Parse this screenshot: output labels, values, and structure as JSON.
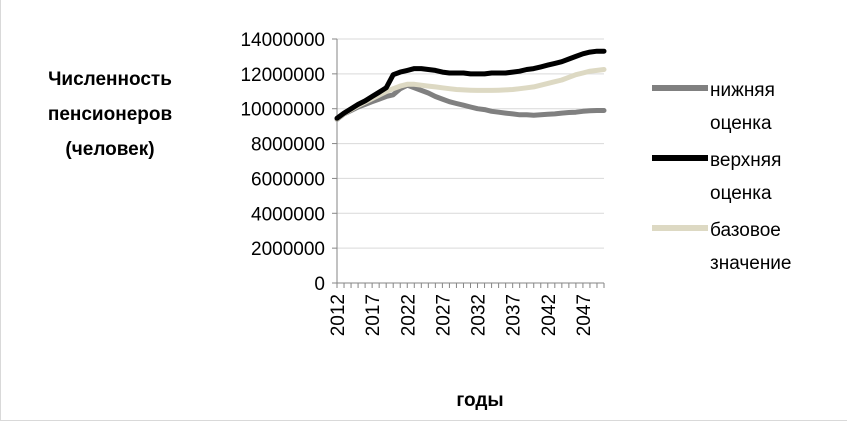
{
  "chart_data": {
    "type": "line",
    "title": "",
    "ylabel": "Численность пенсионеров (человек)",
    "xlabel": "годы",
    "ylim": [
      0,
      14000000
    ],
    "yticks": [
      0,
      2000000,
      4000000,
      6000000,
      8000000,
      10000000,
      12000000,
      14000000
    ],
    "ytick_labels": [
      "0",
      "2000000",
      "4000000",
      "6000000",
      "8000000",
      "10000000",
      "12000000",
      "14000000"
    ],
    "x": [
      2012,
      2013,
      2014,
      2015,
      2016,
      2017,
      2018,
      2019,
      2020,
      2021,
      2022,
      2023,
      2024,
      2025,
      2026,
      2027,
      2028,
      2029,
      2030,
      2031,
      2032,
      2033,
      2034,
      2035,
      2036,
      2037,
      2038,
      2039,
      2040,
      2041,
      2042,
      2043,
      2044,
      2045,
      2046,
      2047,
      2048,
      2049,
      2050
    ],
    "xtick_labels": [
      "2012",
      "2017",
      "2022",
      "2027",
      "2032",
      "2037",
      "2042",
      "2047"
    ],
    "grid": "horizontal",
    "legend_position": "right",
    "series": [
      {
        "name": "нижняя оценка",
        "color": "#808080",
        "values": [
          9400000,
          9700000,
          9900000,
          10100000,
          10250000,
          10400000,
          10550000,
          10700000,
          10800000,
          11150000,
          11350000,
          11200000,
          11050000,
          10900000,
          10700000,
          10550000,
          10400000,
          10300000,
          10200000,
          10100000,
          10000000,
          9950000,
          9850000,
          9800000,
          9750000,
          9700000,
          9650000,
          9650000,
          9620000,
          9650000,
          9680000,
          9700000,
          9750000,
          9780000,
          9800000,
          9850000,
          9880000,
          9900000,
          9900000
        ]
      },
      {
        "name": "верхняя оценка",
        "color": "#000000",
        "values": [
          9450000,
          9750000,
          10000000,
          10250000,
          10450000,
          10700000,
          10950000,
          11200000,
          11950000,
          12100000,
          12200000,
          12300000,
          12300000,
          12250000,
          12200000,
          12100000,
          12050000,
          12050000,
          12050000,
          12000000,
          12000000,
          12000000,
          12050000,
          12050000,
          12050000,
          12100000,
          12150000,
          12250000,
          12300000,
          12400000,
          12500000,
          12600000,
          12700000,
          12850000,
          13000000,
          13150000,
          13250000,
          13300000,
          13300000
        ]
      },
      {
        "name": "базовое значение",
        "color": "#ddd9c3",
        "values": [
          9420000,
          9720000,
          9950000,
          10180000,
          10380000,
          10580000,
          10780000,
          10980000,
          11150000,
          11300000,
          11400000,
          11400000,
          11350000,
          11300000,
          11250000,
          11200000,
          11150000,
          11100000,
          11080000,
          11060000,
          11050000,
          11050000,
          11050000,
          11060000,
          11080000,
          11100000,
          11150000,
          11200000,
          11250000,
          11350000,
          11450000,
          11550000,
          11650000,
          11800000,
          11950000,
          12050000,
          12150000,
          12200000,
          12250000
        ]
      }
    ]
  }
}
